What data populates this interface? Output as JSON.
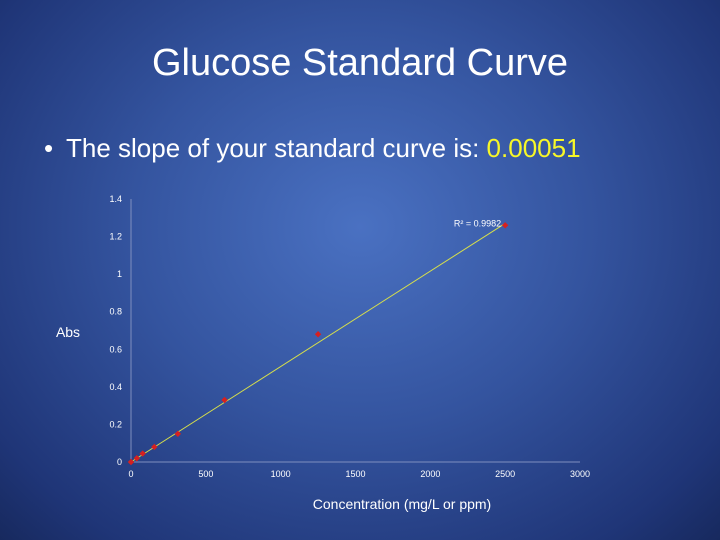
{
  "slide": {
    "title": "Glucose Standard Curve",
    "bullet_text": "The slope of your standard curve is: ",
    "slope_value": "0.00051"
  },
  "colors": {
    "marker": "#d62020",
    "trendline": "#d8e04a",
    "slope_highlight": "#f7f728"
  },
  "chart_data": {
    "type": "scatter",
    "xlabel": "Concentration (mg/L or ppm)",
    "ylabel": "Abs",
    "xlim": [
      0,
      3000
    ],
    "ylim": [
      0,
      1.4
    ],
    "x_ticks": [
      0,
      500,
      1000,
      1500,
      2000,
      2500,
      3000
    ],
    "y_ticks": [
      0,
      0.2,
      0.4,
      0.6,
      0.8,
      1,
      1.2,
      1.4
    ],
    "x_tick_labels": [
      "0",
      "500",
      "1000",
      "1500",
      "2000",
      "2500",
      "3000"
    ],
    "y_tick_labels": [
      "0",
      "0.2",
      "0.4",
      "0.6",
      "0.8",
      "1",
      "1.2",
      "1.4"
    ],
    "grid": false,
    "points": [
      {
        "x": 0,
        "y": 0.0
      },
      {
        "x": 39,
        "y": 0.02
      },
      {
        "x": 78,
        "y": 0.045
      },
      {
        "x": 156,
        "y": 0.08
      },
      {
        "x": 313,
        "y": 0.15
      },
      {
        "x": 625,
        "y": 0.33
      },
      {
        "x": 1250,
        "y": 0.68
      },
      {
        "x": 2500,
        "y": 1.26
      }
    ],
    "trendline": {
      "x": [
        0,
        2500
      ],
      "y": [
        0.0,
        1.27
      ]
    },
    "r_squared_label": "R² = 0.9982"
  }
}
